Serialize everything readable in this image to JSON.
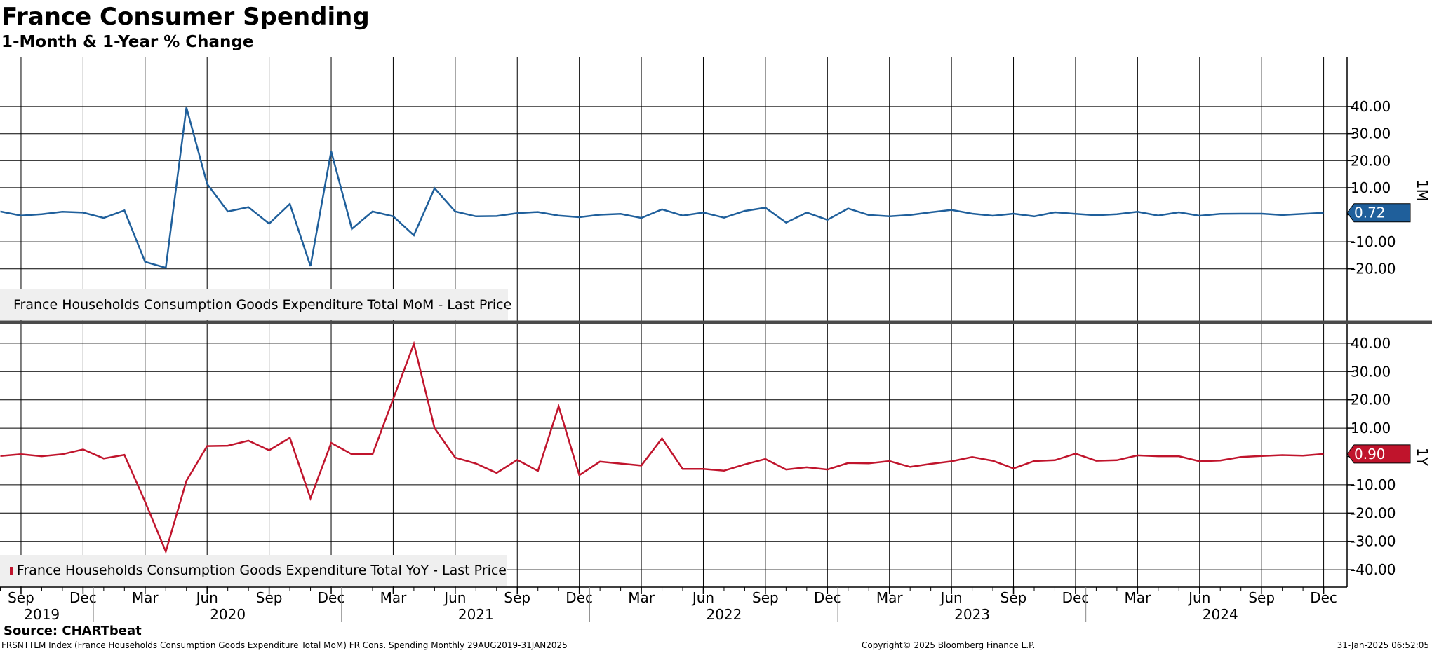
{
  "title": "France Consumer Spending",
  "subtitle": "1-Month & 1-Year % Change",
  "source": "Source: CHARTbeat",
  "footer": {
    "left": "FRSNTTLM Index (France Households Consumption Goods Expenditure Total MoM) FR Cons. Spending  Monthly 29AUG2019-31JAN2025",
    "middle": "Copyright© 2025 Bloomberg Finance L.P.",
    "right": "31-Jan-2025 06:52:05"
  },
  "colors": {
    "mom": "#1f5f9b",
    "yoy": "#c0142c",
    "grid": "#000000",
    "divider": "#4a4a4a",
    "legend_bg": "#efefef"
  },
  "x_axis": {
    "month_labels": [
      "Sep",
      "Dec",
      "Mar",
      "Jun",
      "Sep",
      "Dec",
      "Mar",
      "Jun",
      "Sep",
      "Dec",
      "Mar",
      "Jun",
      "Sep",
      "Dec",
      "Mar",
      "Jun",
      "Sep",
      "Dec",
      "Mar",
      "Jun",
      "Sep",
      "Dec"
    ],
    "year_labels": [
      "2019",
      "2020",
      "2021",
      "2022",
      "2023",
      "2024"
    ]
  },
  "chart_data": [
    {
      "type": "line",
      "panel_label": "1M",
      "legend": "France Households Consumption Goods Expenditure Total MoM - Last Price",
      "last_value_label": "0.72",
      "x": [
        "2019-08",
        "2019-09",
        "2019-10",
        "2019-11",
        "2019-12",
        "2020-01",
        "2020-02",
        "2020-03",
        "2020-04",
        "2020-05",
        "2020-06",
        "2020-07",
        "2020-08",
        "2020-09",
        "2020-10",
        "2020-11",
        "2020-12",
        "2021-01",
        "2021-02",
        "2021-03",
        "2021-04",
        "2021-05",
        "2021-06",
        "2021-07",
        "2021-08",
        "2021-09",
        "2021-10",
        "2021-11",
        "2021-12",
        "2022-01",
        "2022-02",
        "2022-03",
        "2022-04",
        "2022-05",
        "2022-06",
        "2022-07",
        "2022-08",
        "2022-09",
        "2022-10",
        "2022-11",
        "2022-12",
        "2023-01",
        "2023-02",
        "2023-03",
        "2023-04",
        "2023-05",
        "2023-06",
        "2023-07",
        "2023-08",
        "2023-09",
        "2023-10",
        "2023-11",
        "2023-12",
        "2024-01",
        "2024-02",
        "2024-03",
        "2024-04",
        "2024-05",
        "2024-06",
        "2024-07",
        "2024-08",
        "2024-09",
        "2024-10",
        "2024-11",
        "2024-12"
      ],
      "values": [
        1.2,
        -0.3,
        0.2,
        1.1,
        0.8,
        -1.2,
        1.6,
        -17.4,
        -19.6,
        39.7,
        11.4,
        1.2,
        2.8,
        -3.3,
        4.0,
        -19.0,
        23.5,
        -5.2,
        1.2,
        -0.6,
        -7.6,
        9.8,
        1.2,
        -0.6,
        -0.5,
        0.6,
        1.0,
        -0.3,
        -0.9,
        0.0,
        0.3,
        -1.2,
        2.0,
        -0.3,
        0.8,
        -1.1,
        1.4,
        2.6,
        -2.9,
        0.8,
        -1.9,
        2.3,
        -0.1,
        -0.6,
        -0.1,
        0.9,
        1.8,
        0.4,
        -0.4,
        0.4,
        -0.6,
        0.9,
        0.3,
        -0.2,
        0.2,
        1.1,
        -0.3,
        0.9,
        -0.4,
        0.3,
        0.4,
        0.4,
        -0.1,
        0.3,
        0.72
      ],
      "ylim": [
        -30,
        45
      ],
      "yticks": [
        "40.00",
        "30.00",
        "20.00",
        "10.00",
        "-10.00",
        "-20.00"
      ]
    },
    {
      "type": "line",
      "panel_label": "1Y",
      "legend": "France Households Consumption Goods Expenditure Total YoY - Last Price",
      "last_value_label": "0.90",
      "x": [
        "2019-08",
        "2019-09",
        "2019-10",
        "2019-11",
        "2019-12",
        "2020-01",
        "2020-02",
        "2020-03",
        "2020-04",
        "2020-05",
        "2020-06",
        "2020-07",
        "2020-08",
        "2020-09",
        "2020-10",
        "2020-11",
        "2020-12",
        "2021-01",
        "2021-02",
        "2021-03",
        "2021-04",
        "2021-05",
        "2021-06",
        "2021-07",
        "2021-08",
        "2021-09",
        "2021-10",
        "2021-11",
        "2021-12",
        "2022-01",
        "2022-02",
        "2022-03",
        "2022-04",
        "2022-05",
        "2022-06",
        "2022-07",
        "2022-08",
        "2022-09",
        "2022-10",
        "2022-11",
        "2022-12",
        "2023-01",
        "2023-02",
        "2023-03",
        "2023-04",
        "2023-05",
        "2023-06",
        "2023-07",
        "2023-08",
        "2023-09",
        "2023-10",
        "2023-11",
        "2023-12",
        "2024-01",
        "2024-02",
        "2024-03",
        "2024-04",
        "2024-05",
        "2024-06",
        "2024-07",
        "2024-08",
        "2024-09",
        "2024-10",
        "2024-11",
        "2024-12"
      ],
      "values": [
        0.2,
        0.8,
        0.1,
        0.8,
        2.5,
        -0.7,
        0.6,
        -16.0,
        -33.6,
        -8.6,
        3.7,
        3.8,
        5.6,
        2.2,
        6.6,
        -14.8,
        4.8,
        0.8,
        0.8,
        20.3,
        39.8,
        10.0,
        -0.4,
        -2.5,
        -5.8,
        -1.2,
        -5.1,
        17.7,
        -6.6,
        -1.8,
        -2.5,
        -3.2,
        6.4,
        -4.4,
        -4.4,
        -5.0,
        -2.8,
        -0.9,
        -4.6,
        -3.8,
        -4.6,
        -2.3,
        -2.4,
        -1.6,
        -3.7,
        -2.6,
        -1.7,
        -0.2,
        -1.5,
        -4.2,
        -1.6,
        -1.3,
        1.0,
        -1.5,
        -1.3,
        0.4,
        0.1,
        0.1,
        -1.7,
        -1.4,
        -0.2,
        0.2,
        0.5,
        0.3,
        0.9
      ],
      "ylim": [
        -45,
        45
      ],
      "yticks": [
        "40.00",
        "30.00",
        "20.00",
        "10.00",
        "-10.00",
        "-20.00",
        "-30.00",
        "-40.00"
      ]
    }
  ]
}
